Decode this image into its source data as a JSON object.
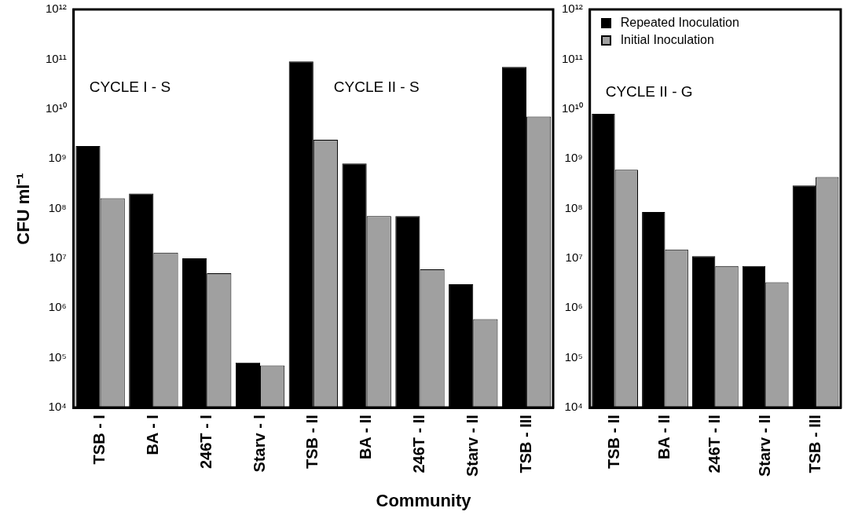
{
  "chart_data": [
    {
      "type": "bar",
      "ylabel": "CFU ml⁻¹",
      "xlabel": "Community",
      "log": true,
      "grid": false,
      "legend": false,
      "categories": [
        "TSB - I",
        "BA - I",
        "246T - I",
        "Starv - I",
        "TSB - II",
        "BA - II",
        "246T - II",
        "Starv - II",
        "TSB - III"
      ],
      "series": [
        {
          "color": "#000000",
          "values": [
            1800000000,
            200000000,
            10000000,
            80000,
            90000000000,
            800000000,
            70000000,
            3000000,
            70000000000
          ]
        },
        {
          "color": "#a0a0a0",
          "values": [
            160000000,
            13000000,
            5000000,
            70000,
            2400000000,
            70000000,
            6000000,
            600000,
            7000000000
          ]
        }
      ],
      "ylim": [
        10000,
        1000000000000
      ],
      "yticks": [
        {
          "value": 10000,
          "label": "10⁴"
        },
        {
          "value": 100000,
          "label": "10⁵"
        },
        {
          "value": 1000000,
          "label": "10⁶"
        },
        {
          "value": 10000000,
          "label": "10⁷"
        },
        {
          "value": 100000000,
          "label": "10⁸"
        },
        {
          "value": 1000000000,
          "label": "10⁹"
        },
        {
          "value": 10000000000,
          "label": "10¹⁰"
        },
        {
          "value": 100000000000,
          "label": "10¹¹"
        },
        {
          "value": 1000000000000,
          "label": "10¹²"
        }
      ],
      "annotations": [
        "CYCLE I - S",
        "CYCLE II - S"
      ]
    },
    {
      "type": "bar",
      "log": true,
      "grid": false,
      "legend": "top left",
      "categories": [
        "TSB - II",
        "BA - II",
        "246T - II",
        "Starv - II",
        "TSB - III"
      ],
      "series": [
        {
          "name": "Repeated Inoculation",
          "color": "#000000",
          "values": [
            8000000000,
            85000000,
            11000000,
            7000000,
            290000000
          ]
        },
        {
          "name": "Initial Inoculation",
          "color": "#a0a0a0",
          "values": [
            600000000,
            15000000,
            7000000,
            3300000,
            430000000
          ]
        }
      ],
      "ylim": [
        10000,
        1000000000000
      ],
      "yticks": [
        {
          "value": 10000,
          "label": "10⁴"
        },
        {
          "value": 100000,
          "label": "10⁵"
        },
        {
          "value": 1000000,
          "label": "10⁶"
        },
        {
          "value": 10000000,
          "label": "10⁷"
        },
        {
          "value": 100000000,
          "label": "10⁸"
        },
        {
          "value": 1000000000,
          "label": "10⁹"
        },
        {
          "value": 10000000000,
          "label": "10¹⁰"
        },
        {
          "value": 100000000000,
          "label": "10¹¹"
        },
        {
          "value": 1000000000000,
          "label": "10¹²"
        }
      ],
      "annotations": [
        "CYCLE II - G"
      ]
    }
  ]
}
